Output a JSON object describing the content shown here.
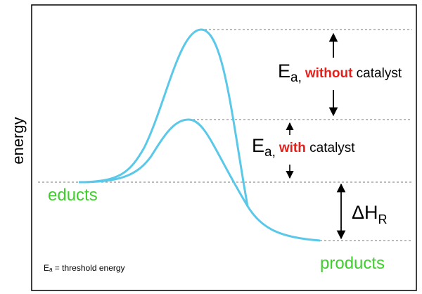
{
  "axis": {
    "ylabel": "energy"
  },
  "labels": {
    "educts": "educts",
    "products": "products",
    "footnote": "Eₐ = threshold energy"
  },
  "annotations": {
    "ea_without": {
      "symbol": "E",
      "sub": "a,",
      "emph": "without",
      "rest": " catalyst"
    },
    "ea_with": {
      "symbol": "E",
      "sub": "a,",
      "emph": "with",
      "rest": " catalyst"
    },
    "delta_h": {
      "symbol": "ΔH",
      "sub": "R"
    }
  },
  "colors": {
    "curve": "#5ac8e8",
    "highlight": "#e3201b",
    "label_green": "#3fcf2c",
    "frame": "#000000",
    "dashed": "#777777"
  }
}
